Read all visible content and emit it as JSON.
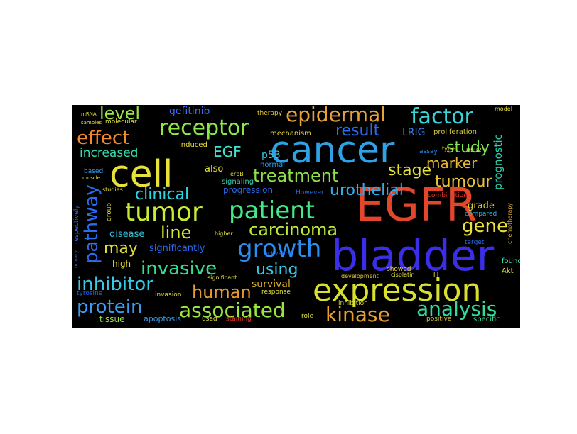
{
  "word_cloud": {
    "background": "#000000",
    "words": [
      {
        "text": "EGFR",
        "color": "#e4462c"
      },
      {
        "text": "bladder",
        "color": "#3a2ee8"
      },
      {
        "text": "cancer",
        "color": "#2fa2e6"
      },
      {
        "text": "cell",
        "color": "#e6e23a"
      },
      {
        "text": "expression",
        "color": "#d8e22e"
      },
      {
        "text": "tumor",
        "color": "#c8ec34"
      },
      {
        "text": "patient",
        "color": "#44e88a"
      },
      {
        "text": "growth",
        "color": "#2a8ef0"
      },
      {
        "text": "receptor",
        "color": "#8ae848"
      },
      {
        "text": "factor",
        "color": "#38d6d8"
      },
      {
        "text": "epidermal",
        "color": "#e8a23a"
      },
      {
        "text": "associated",
        "color": "#9ae640"
      },
      {
        "text": "protein",
        "color": "#3a9cf0"
      },
      {
        "text": "kinase",
        "color": "#e8a030"
      },
      {
        "text": "analysis",
        "color": "#34dc9c"
      },
      {
        "text": "inhibitor",
        "color": "#38c8e8"
      },
      {
        "text": "effect",
        "color": "#f08a2c"
      },
      {
        "text": "pathway",
        "color": "#2a6ef0"
      },
      {
        "text": "invasive",
        "color": "#38dc92"
      },
      {
        "text": "treatment",
        "color": "#8ee04a"
      },
      {
        "text": "human",
        "color": "#ea9a32"
      },
      {
        "text": "clinical",
        "color": "#2ad4e0"
      },
      {
        "text": "carcinoma",
        "color": "#bce83a"
      },
      {
        "text": "urothelial",
        "color": "#2eacec"
      },
      {
        "text": "result",
        "color": "#2a6cf0"
      },
      {
        "text": "study",
        "color": "#7ee650"
      },
      {
        "text": "gene",
        "color": "#eae03a"
      },
      {
        "text": "stage",
        "color": "#e4e43a"
      },
      {
        "text": "tumour",
        "color": "#eac23a"
      },
      {
        "text": "level",
        "color": "#9ae444"
      },
      {
        "text": "line",
        "color": "#d8e83a"
      },
      {
        "text": "may",
        "color": "#e0dc3a"
      },
      {
        "text": "using",
        "color": "#38c8e8"
      },
      {
        "text": "marker",
        "color": "#e8b838"
      },
      {
        "text": "increased",
        "color": "#38dcb0"
      },
      {
        "text": "EGF",
        "color": "#46e0d0"
      },
      {
        "text": "LRIG",
        "color": "#3a7ef0"
      },
      {
        "text": "prognostic",
        "color": "#2ad6b0"
      },
      {
        "text": "gefitinib",
        "color": "#3a6ef0"
      },
      {
        "text": "p53",
        "color": "#38c4d8"
      },
      {
        "text": "survival",
        "color": "#d8b030"
      },
      {
        "text": "grade",
        "color": "#d6c838"
      },
      {
        "text": "significantly",
        "color": "#2a6ae8"
      },
      {
        "text": "disease",
        "color": "#38c0d8"
      },
      {
        "text": "high",
        "color": "#e6d838"
      },
      {
        "text": "also",
        "color": "#e6e03a"
      },
      {
        "text": "progression",
        "color": "#2a66e8"
      },
      {
        "text": "tissue",
        "color": "#9ae040"
      },
      {
        "text": "apoptosis",
        "color": "#3a9ce8"
      },
      {
        "text": "mechanism",
        "color": "#e0d63a"
      },
      {
        "text": "proliferation",
        "color": "#d6c838"
      },
      {
        "text": "induced",
        "color": "#e6dc3a"
      },
      {
        "text": "signaling",
        "color": "#3ac8a8"
      },
      {
        "text": "normal",
        "color": "#2a9ce8"
      },
      {
        "text": "However",
        "color": "#2a6ae8"
      },
      {
        "text": "combination",
        "color": "#d63a2a"
      },
      {
        "text": "compared",
        "color": "#2ab4e0"
      },
      {
        "text": "target",
        "color": "#2a6ae8"
      },
      {
        "text": "found",
        "color": "#3ae8b0"
      },
      {
        "text": "Akt",
        "color": "#d6e03a"
      },
      {
        "text": "specific",
        "color": "#3ae0a0"
      },
      {
        "text": "positive",
        "color": "#d6c83a"
      },
      {
        "text": "showed",
        "color": "#e6d838"
      },
      {
        "text": "inhibition",
        "color": "#d6d83a"
      },
      {
        "text": "invasion",
        "color": "#e6dc3a"
      },
      {
        "text": "response",
        "color": "#e6e03a"
      },
      {
        "text": "staining",
        "color": "#e63a2a"
      },
      {
        "text": "used",
        "color": "#e6e03a"
      },
      {
        "text": "role",
        "color": "#e6e03a"
      },
      {
        "text": "tyrosine",
        "color": "#2a66e8"
      },
      {
        "text": "molecular",
        "color": "#e6e03a"
      },
      {
        "text": "therapy",
        "color": "#e6c83a"
      },
      {
        "text": "assay",
        "color": "#2a8ef0"
      },
      {
        "text": "chemotherapy",
        "color": "#d6a83a"
      },
      {
        "text": "respectively",
        "color": "#3a6ae8"
      },
      {
        "text": "based",
        "color": "#3a9ce8"
      },
      {
        "text": "group",
        "color": "#d6d83a"
      },
      {
        "text": "studies",
        "color": "#e6e03a"
      },
      {
        "text": "erbB",
        "color": "#e6e03a"
      },
      {
        "text": "activation",
        "color": "#2a6ae8"
      },
      {
        "text": "significant",
        "color": "#e6e03a"
      },
      {
        "text": "higher",
        "color": "#e6e03a"
      },
      {
        "text": "model",
        "color": "#e6e03a"
      },
      {
        "text": "cisplatin",
        "color": "#e6e03a"
      },
      {
        "text": "development",
        "color": "#e6c83a"
      },
      {
        "text": "HER2",
        "color": "#e6e03a"
      },
      {
        "text": "type",
        "color": "#e6e03a"
      },
      {
        "text": "mRNA",
        "color": "#e6e03a"
      },
      {
        "text": "samples",
        "color": "#e6e03a"
      },
      {
        "text": "muscle",
        "color": "#e6e03a"
      },
      {
        "text": "urinary",
        "color": "#3a6ae8"
      },
      {
        "text": "III",
        "color": "#e6e03a"
      }
    ]
  }
}
